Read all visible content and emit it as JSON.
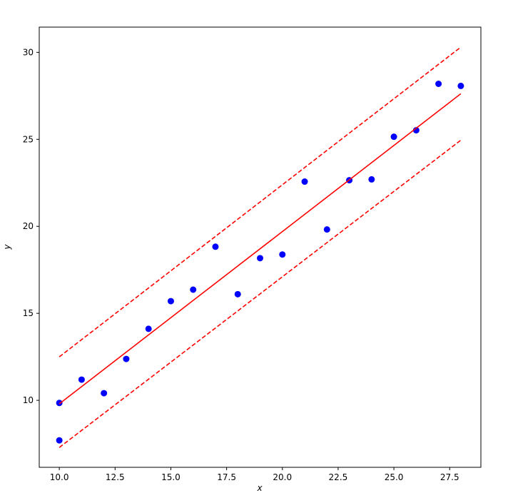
{
  "chart_data": {
    "type": "scatter",
    "xlabel": "x",
    "ylabel": "y",
    "xlim": [
      9.1,
      28.9
    ],
    "ylim": [
      6.15,
      31.45
    ],
    "xticks": [
      {
        "value": 10,
        "label": "10.0"
      },
      {
        "value": 12.5,
        "label": "12.5"
      },
      {
        "value": 15,
        "label": "15.0"
      },
      {
        "value": 17.5,
        "label": "17.5"
      },
      {
        "value": 20,
        "label": "20.0"
      },
      {
        "value": 22.5,
        "label": "22.5"
      },
      {
        "value": 25,
        "label": "25.0"
      },
      {
        "value": 27.5,
        "label": "27.5"
      }
    ],
    "yticks": [
      10,
      15,
      20,
      25,
      30
    ],
    "series": [
      {
        "style": "points",
        "color": "#0000ff",
        "x": [
          10,
          10,
          11,
          12,
          13,
          14,
          15,
          16,
          17,
          18,
          19,
          20,
          21,
          22,
          23,
          24,
          25,
          26,
          27,
          28
        ],
        "values": [
          9.85,
          7.7,
          11.19,
          10.41,
          12.38,
          14.11,
          15.7,
          16.36,
          18.83,
          16.1,
          18.17,
          18.38,
          22.57,
          19.82,
          22.65,
          22.7,
          25.15,
          25.52,
          28.19,
          28.07
        ]
      },
      {
        "style": "line",
        "color": "#ff0000",
        "dashed": false,
        "x": [
          10,
          28
        ],
        "values": [
          9.8,
          27.62
        ]
      },
      {
        "style": "line",
        "color": "#ff0000",
        "dashed": true,
        "x": [
          10,
          28
        ],
        "values": [
          12.5,
          30.3
        ]
      },
      {
        "style": "line",
        "color": "#ff0000",
        "dashed": true,
        "x": [
          10,
          28
        ],
        "values": [
          7.29,
          24.95
        ]
      }
    ]
  }
}
